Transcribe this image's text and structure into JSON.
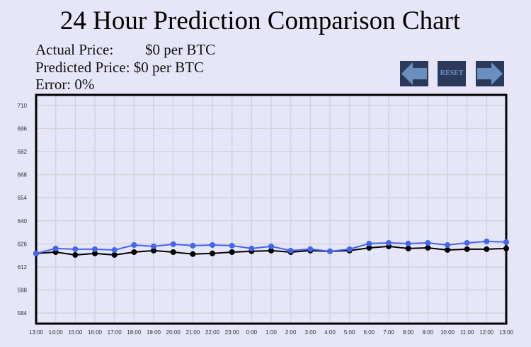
{
  "title": "24 Hour Prediction Comparison Chart",
  "info": {
    "actual_label": "Actual Price:",
    "actual_value": "$0 per BTC",
    "predicted_label": "Predicted Price:",
    "predicted_value": "$0 per BTC",
    "error_label": "Error:",
    "error_value": "0%"
  },
  "controls": {
    "prev_icon": "left-arrow-icon",
    "reset_label": "RESET",
    "next_icon": "right-arrow-icon"
  },
  "colors": {
    "background": "#e6e6f8",
    "actual": "#000000",
    "predicted": "#4466ee",
    "button": "#2b3a5a",
    "button_icon": "#6a8fbf"
  },
  "chart_data": {
    "type": "line",
    "categories": [
      "13:00",
      "14:00",
      "15:00",
      "16:00",
      "17:00",
      "18:00",
      "19:00",
      "20:00",
      "21:00",
      "22:00",
      "23:00",
      "0:00",
      "1:00",
      "2:00",
      "3:00",
      "4:00",
      "5:00",
      "6:00",
      "7:00",
      "8:00",
      "9:00",
      "10:00",
      "11:00",
      "12:00",
      "13:00"
    ],
    "yticks": [
      584,
      598,
      612,
      626,
      640,
      654,
      668,
      682,
      696,
      710
    ],
    "ylim": [
      577.6,
      716.4
    ],
    "grid": true,
    "series": [
      {
        "color": "#000000",
        "values": [
          620.2,
          621.0,
          619.3,
          620.2,
          619.3,
          621.0,
          621.9,
          621.0,
          619.8,
          620.2,
          621.0,
          621.5,
          621.9,
          621.0,
          621.9,
          621.5,
          621.9,
          623.6,
          624.5,
          623.2,
          623.6,
          622.3,
          622.8,
          622.8,
          623.2
        ]
      },
      {
        "color": "#4466ee",
        "values": [
          620.2,
          623.2,
          622.8,
          622.8,
          622.3,
          625.3,
          624.5,
          625.8,
          624.9,
          625.3,
          624.9,
          623.2,
          624.5,
          621.9,
          622.8,
          621.5,
          622.8,
          626.2,
          626.6,
          626.2,
          626.6,
          625.3,
          626.6,
          627.5,
          627.1
        ]
      }
    ]
  }
}
